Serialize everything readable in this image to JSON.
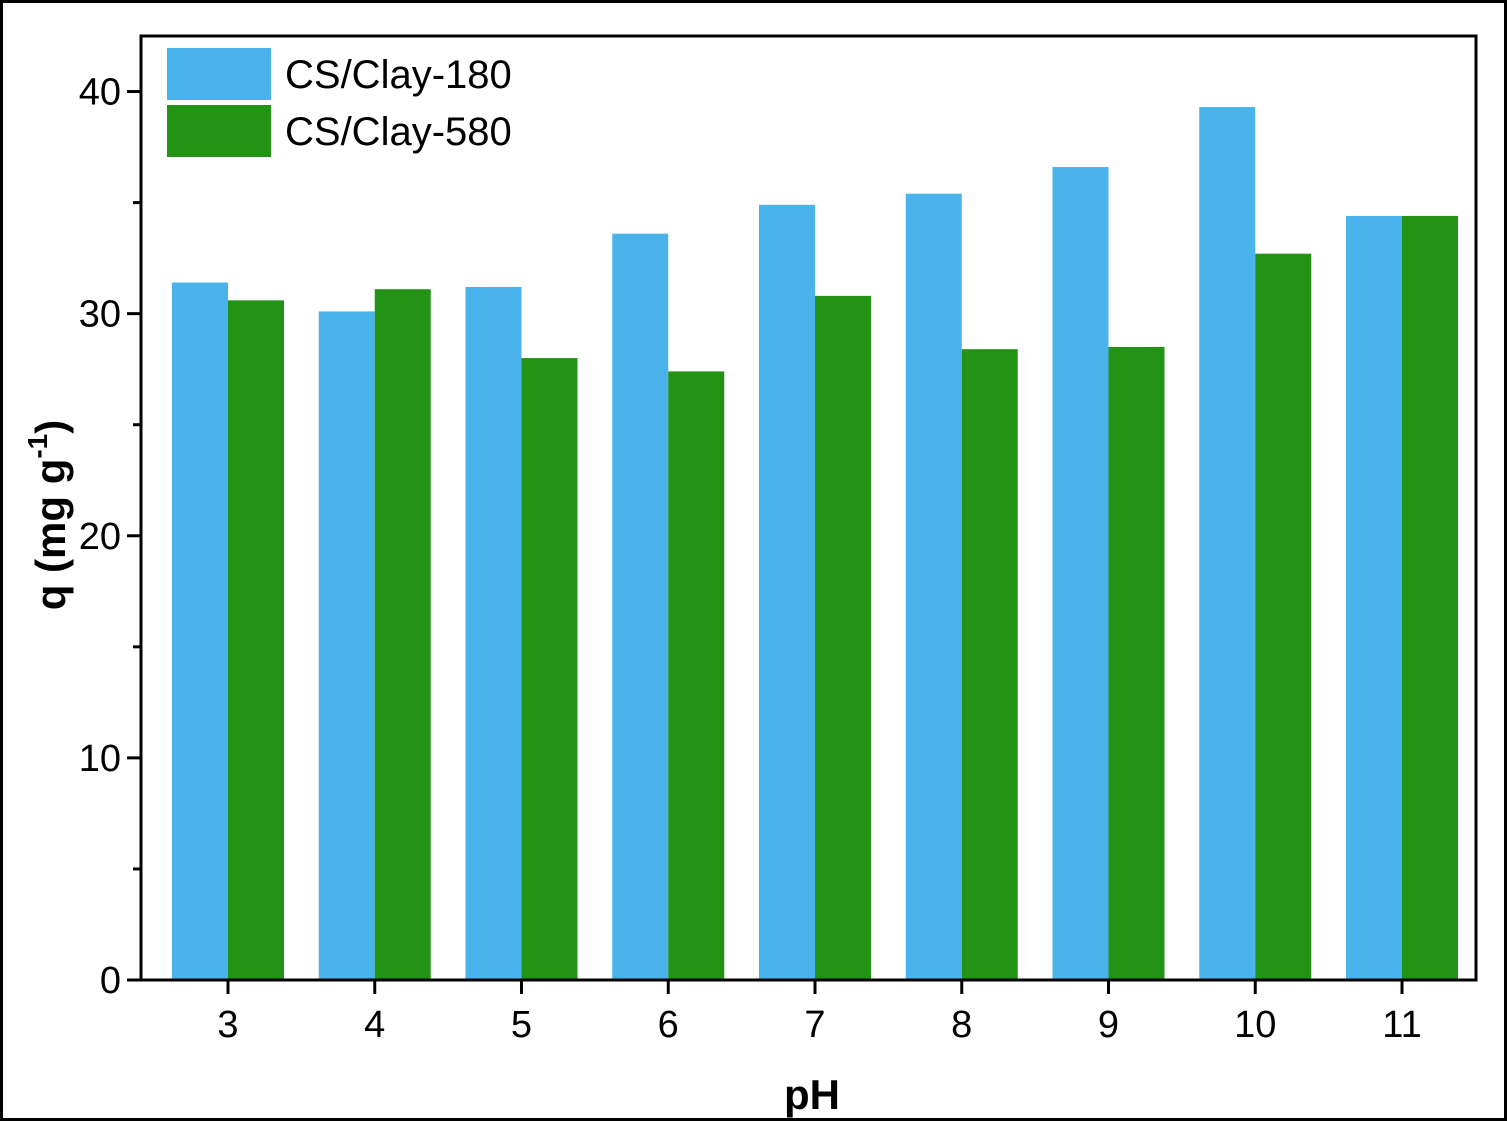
{
  "chart_data": {
    "type": "bar",
    "xlabel": "pH",
    "ylabel": "q (mg g",
    "ylabel_sup": "-1",
    "ylabel_close": ")",
    "categories": [
      "3",
      "4",
      "5",
      "6",
      "7",
      "8",
      "9",
      "10",
      "11"
    ],
    "yticks": [
      "0",
      "10",
      "20",
      "30",
      "40"
    ],
    "ylim": [
      0,
      42.5
    ],
    "grid": false,
    "legend_position": "top-left",
    "series": [
      {
        "name": "CS/Clay-180",
        "color": "#4ab3ec",
        "values": [
          31.4,
          30.1,
          31.2,
          33.6,
          34.9,
          35.4,
          36.6,
          39.3,
          34.4
        ]
      },
      {
        "name": "CS/Clay-580",
        "color": "#229315",
        "values": [
          30.6,
          31.1,
          28.0,
          27.4,
          30.8,
          28.4,
          28.5,
          32.7,
          34.4
        ]
      }
    ]
  }
}
